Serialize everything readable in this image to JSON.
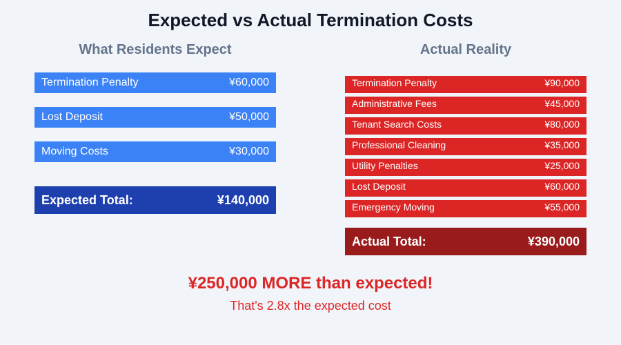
{
  "title": "Expected vs Actual Termination Costs",
  "expected": {
    "heading": "What Residents Expect",
    "items": [
      {
        "label": "Termination Penalty",
        "amount": "¥60,000"
      },
      {
        "label": "Lost Deposit",
        "amount": "¥50,000"
      },
      {
        "label": "Moving Costs",
        "amount": "¥30,000"
      }
    ],
    "total": {
      "label": "Expected Total:",
      "amount": "¥140,000"
    }
  },
  "actual": {
    "heading": "Actual Reality",
    "items": [
      {
        "label": "Termination Penalty",
        "amount": "¥90,000"
      },
      {
        "label": "Administrative Fees",
        "amount": "¥45,000"
      },
      {
        "label": "Tenant Search Costs",
        "amount": "¥80,000"
      },
      {
        "label": "Professional Cleaning",
        "amount": "¥35,000"
      },
      {
        "label": "Utility Penalties",
        "amount": "¥25,000"
      },
      {
        "label": "Lost Deposit",
        "amount": "¥60,000"
      },
      {
        "label": "Emergency Moving",
        "amount": "¥55,000"
      }
    ],
    "total": {
      "label": "Actual Total:",
      "amount": "¥390,000"
    }
  },
  "summary": {
    "headline": "¥250,000 MORE than expected!",
    "subline": "That's 2.8x the expected cost"
  }
}
